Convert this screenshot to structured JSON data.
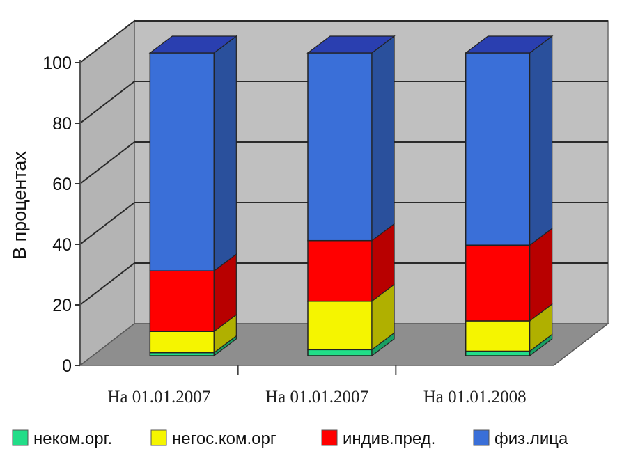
{
  "chart_data": {
    "type": "bar",
    "stacked": true,
    "three_d": true,
    "title": "",
    "xlabel": "",
    "ylabel": "В процентах",
    "ylim": [
      0,
      100
    ],
    "yticks": [
      0,
      20,
      40,
      60,
      80,
      100
    ],
    "grid": true,
    "legend_position": "bottom",
    "categories": [
      "На 01.01.2007",
      "На 01.01.2007",
      "На 01.01.2008"
    ],
    "series": [
      {
        "name": "неком.орг.",
        "color": "#22dd88",
        "values": [
          1,
          2,
          1.5
        ]
      },
      {
        "name": "негос.ком.орг",
        "color": "#f5f500",
        "values": [
          7,
          16,
          10
        ]
      },
      {
        "name": "индив.пред.",
        "color": "#ff0000",
        "values": [
          20,
          20,
          25
        ]
      },
      {
        "name": "физ.лица",
        "color": "#3a6fd8",
        "values": [
          72,
          62,
          63.5
        ]
      }
    ],
    "colors": {
      "wall": "#c0c0c0",
      "floor": "#8e8e8e",
      "grid": "#2a2a2a",
      "top_face": "#2a3fb0"
    }
  }
}
